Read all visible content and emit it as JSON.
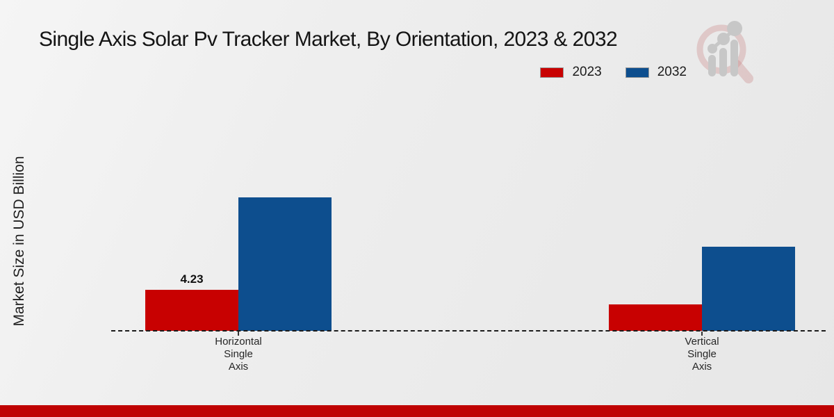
{
  "title": "Single Axis Solar Pv Tracker Market, By Orientation, 2023 & 2032",
  "branding": {
    "logo_icon": "magnifier-bar-chart-watermark",
    "footer_bar_color": "#bf0202"
  },
  "chart_data": {
    "type": "bar",
    "title": "Single Axis Solar Pv Tracker Market, By Orientation, 2023 & 2032",
    "ylabel": "Market Size in USD Billion",
    "xlabel": "",
    "categories": [
      "Horizontal Single Axis",
      "Vertical Single Axis"
    ],
    "series": [
      {
        "name": "2023",
        "color": "#c80101",
        "values": [
          4.23,
          2.7
        ],
        "data_labels": [
          "4.23",
          ""
        ]
      },
      {
        "name": "2032",
        "color": "#0d4e8e",
        "values": [
          13.8,
          8.7
        ],
        "data_labels": [
          "",
          ""
        ]
      }
    ],
    "ylim": [
      0,
      16
    ],
    "grid": false,
    "axis_baseline_style": "dashed",
    "legend_position": "top-right"
  }
}
